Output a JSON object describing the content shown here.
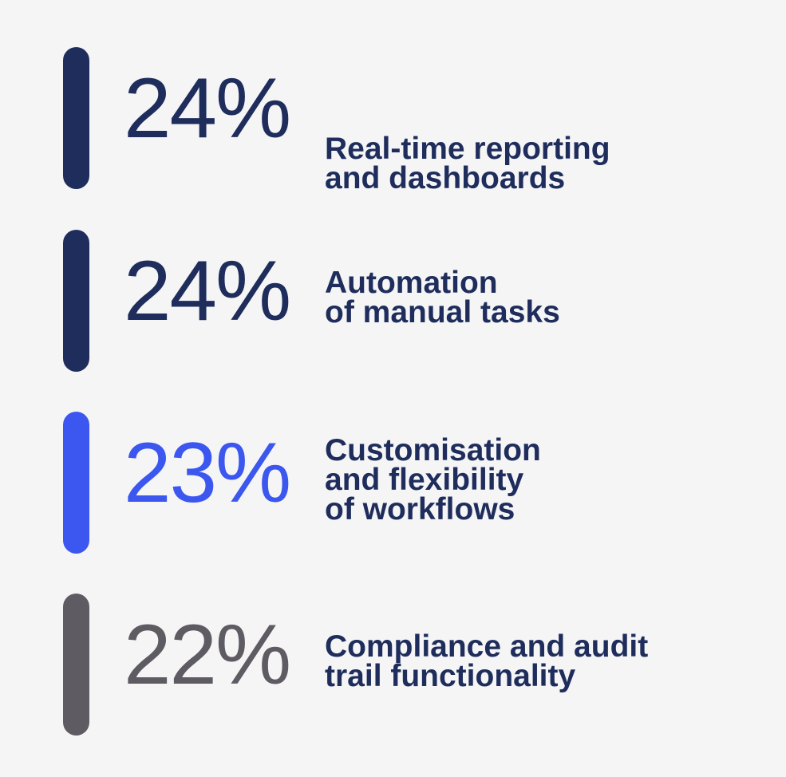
{
  "colors": {
    "background": "#f5f5f6",
    "label_text": "#1f2d5c",
    "navy": "#1f2d5c",
    "blue": "#3b57f0",
    "gray": "#5f5b63"
  },
  "chart_data": {
    "type": "bar",
    "categories": [
      "Real-time reporting and dashboards",
      "Automation of manual tasks",
      "Customisation and flexibility of workflows",
      "Compliance and audit trail functionality"
    ],
    "values": [
      24,
      24,
      23,
      22
    ],
    "unit": "%",
    "stats": [
      {
        "value": "24%",
        "label_lines": [
          "Real-time reporting",
          "and dashboards"
        ],
        "color": "#1f2d5c"
      },
      {
        "value": "24%",
        "label_lines": [
          "Automation",
          "of manual tasks"
        ],
        "color": "#1f2d5c"
      },
      {
        "value": "23%",
        "label_lines": [
          "Customisation",
          "and flexibility",
          "of workflows"
        ],
        "color": "#3b57f0"
      },
      {
        "value": "22%",
        "label_lines": [
          "Compliance and audit",
          "trail functionality"
        ],
        "color": "#5f5b63"
      }
    ]
  }
}
